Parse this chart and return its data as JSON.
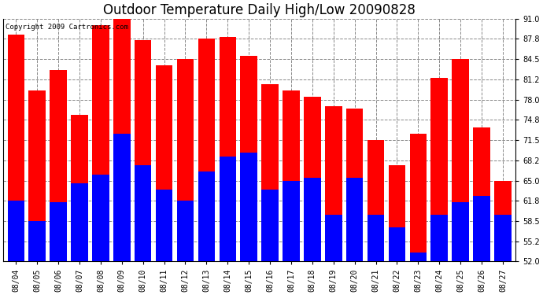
{
  "title": "Outdoor Temperature Daily High/Low 20090828",
  "copyright": "Copyright 2009 Cartronics.com",
  "dates": [
    "08/04",
    "08/05",
    "08/06",
    "08/07",
    "08/08",
    "08/09",
    "08/10",
    "08/11",
    "08/12",
    "08/13",
    "08/14",
    "08/15",
    "08/16",
    "08/17",
    "08/18",
    "08/19",
    "08/20",
    "08/21",
    "08/22",
    "08/23",
    "08/24",
    "08/25",
    "08/26",
    "08/27"
  ],
  "highs": [
    88.5,
    79.5,
    82.8,
    75.5,
    90.0,
    91.5,
    87.5,
    83.5,
    84.5,
    87.8,
    88.0,
    85.0,
    80.5,
    79.5,
    78.5,
    77.0,
    76.5,
    71.5,
    67.5,
    72.5,
    81.5,
    84.5,
    73.5,
    65.0
  ],
  "lows": [
    61.8,
    58.5,
    61.5,
    64.5,
    66.0,
    72.5,
    67.5,
    63.5,
    61.8,
    66.5,
    68.8,
    69.5,
    63.5,
    65.0,
    65.5,
    59.5,
    65.5,
    59.5,
    57.5,
    53.5,
    59.5,
    61.5,
    62.5,
    59.5
  ],
  "high_color": "#ff0000",
  "low_color": "#0000ff",
  "bg_color": "#ffffff",
  "plot_bg_color": "#ffffff",
  "grid_color": "#888888",
  "ylim_min": 52.0,
  "ylim_max": 91.0,
  "yticks": [
    52.0,
    55.2,
    58.5,
    61.8,
    65.0,
    68.2,
    71.5,
    74.8,
    78.0,
    81.2,
    84.5,
    87.8,
    91.0
  ],
  "bar_width": 0.8,
  "title_fontsize": 12,
  "tick_fontsize": 7,
  "copyright_fontsize": 6.5,
  "figwidth": 6.9,
  "figheight": 3.75,
  "dpi": 100
}
